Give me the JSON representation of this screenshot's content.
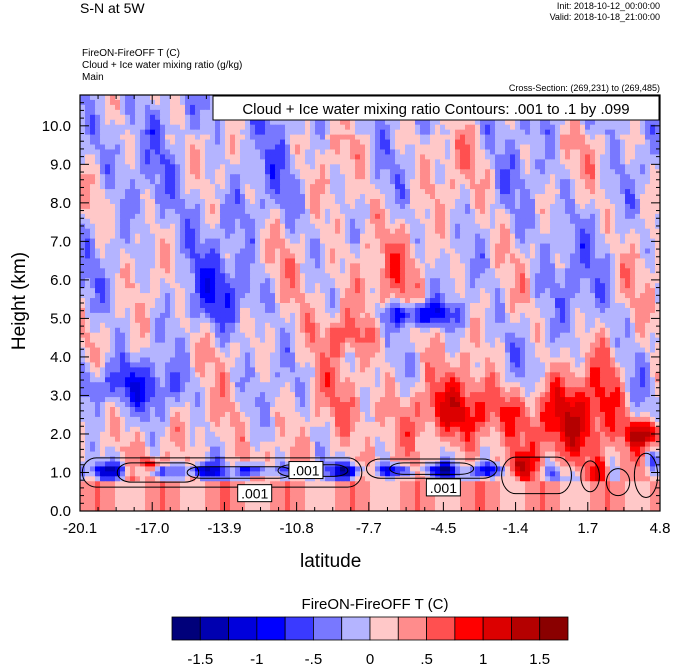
{
  "header": {
    "title": "S-N at 5W",
    "init": "Init: 2018-10-12_00:00:00",
    "valid": "Valid: 2018-10-18_21:00:00",
    "variable_line1": "FireON-FireOFF T   (C)",
    "variable_line2": "Cloud + Ice water mixing ratio   (g/kg)",
    "variable_line3": "Main",
    "cross_section": "Cross-Section: (269,231) to (269,485)"
  },
  "chart_data": {
    "type": "heatmap",
    "title": "S-N at 5W",
    "xlabel": "latitude",
    "ylabel": "Height (km)",
    "xlim": [
      -20.1,
      4.8
    ],
    "ylim": [
      0.0,
      10.8
    ],
    "x_ticks": [
      -20.1,
      -17.0,
      -13.9,
      -10.8,
      -7.7,
      -4.5,
      -1.4,
      1.7,
      4.8
    ],
    "x_tick_labels": [
      "-20.1",
      "-17.0",
      "-13.9",
      "-10.8",
      "-7.7",
      "-4.5",
      "-1.4",
      "1.7",
      "4.8"
    ],
    "y_ticks": [
      0,
      1,
      2,
      3,
      4,
      5,
      6,
      7,
      8,
      9,
      10
    ],
    "y_tick_labels": [
      "0.0",
      "1.0",
      "2.0",
      "3.0",
      "4.0",
      "5.0",
      "6.0",
      "7.0",
      "8.0",
      "9.0",
      "10.0"
    ],
    "contour_info": "Cloud + Ice water mixing ratio Contours: .001 to .1 by .099",
    "contour_levels": [
      0.001,
      0.1
    ],
    "contour_labels": [
      {
        "text": ".001",
        "lat": -10.4,
        "height": 1.05
      },
      {
        "text": ".001",
        "lat": -12.6,
        "height": 0.45
      },
      {
        "text": ".001",
        "lat": -4.5,
        "height": 0.6
      }
    ],
    "colorbar": {
      "title": "FireON-FireOFF T  (C)",
      "levels": [
        -1.75,
        -1.5,
        -1.25,
        -1.0,
        -0.75,
        -0.5,
        -0.25,
        0,
        0.25,
        0.5,
        0.75,
        1.0,
        1.25,
        1.5,
        1.75
      ],
      "tick_labels": [
        "-1.5",
        "-1",
        "-.5",
        "0",
        ".5",
        "1",
        "1.5"
      ],
      "tick_values": [
        -1.5,
        -1.0,
        -0.5,
        0,
        0.5,
        1.0,
        1.5
      ],
      "colors": [
        "#00007a",
        "#0000b0",
        "#0000dc",
        "#0000ff",
        "#3a3aff",
        "#7878ff",
        "#b4b4ff",
        "#ffc8c8",
        "#ff8c8c",
        "#ff5050",
        "#ff0000",
        "#dc0000",
        "#b40000",
        "#8a0000"
      ]
    },
    "features": [
      {
        "name": "cold-layer-low",
        "lat_range": [
          -20.1,
          -1.5
        ],
        "height_range": [
          0.8,
          1.3
        ],
        "value": -1.0
      },
      {
        "name": "cold-band-upper",
        "lat_range": [
          -20.1,
          -17.5
        ],
        "height_range": [
          3.0,
          3.8
        ],
        "value": -0.75
      },
      {
        "name": "cold-blob-mid",
        "lat_range": [
          -7.5,
          -3.8
        ],
        "height_range": [
          4.8,
          5.4
        ],
        "value": -1.25
      },
      {
        "name": "warm-region-lower-right",
        "lat_range": [
          -7.0,
          4.8
        ],
        "height_range": [
          1.5,
          4.0
        ],
        "value": 0.75
      },
      {
        "name": "warm-core-right",
        "lat_range": [
          3.0,
          4.8
        ],
        "height_range": [
          1.8,
          2.3
        ],
        "value": 1.5
      }
    ]
  }
}
